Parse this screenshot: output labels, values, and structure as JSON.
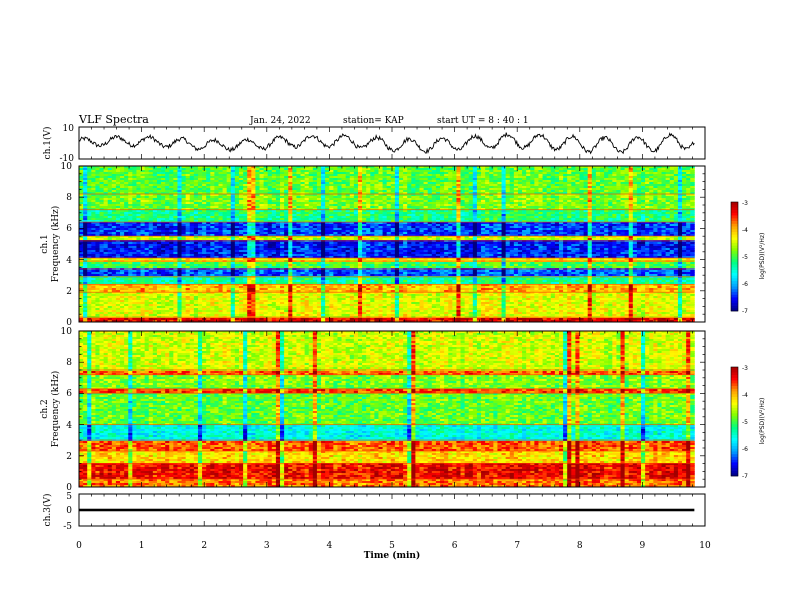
{
  "header": {
    "title": "VLF Spectra",
    "date": "Jan. 24, 2022",
    "station": "station= KAP",
    "start_ut": "start  UT =  8 : 40 : 1"
  },
  "chart_data": [
    {
      "type": "line",
      "panel": "ch1-waveform",
      "ylabel": "ch.1(V)",
      "ylim": [
        -10,
        10
      ],
      "yticks": [
        "10",
        "-10"
      ],
      "xlim": [
        0,
        10
      ],
      "x_end": 9.83,
      "note_shape": "oscillating signal, roughly -5 to +5 V, period ~0.5 min growing in amplitude",
      "color": "#000000"
    },
    {
      "type": "heatmap",
      "panel": "ch1-spectrogram",
      "ylabel": "ch.1",
      "ylabel2": "Frequency (kHz)",
      "ylim": [
        0,
        10
      ],
      "yticks": [
        "0",
        "2",
        "4",
        "6",
        "8",
        "10"
      ],
      "xlim": [
        0,
        10
      ],
      "x_end": 9.83,
      "colorbar": {
        "label": "log(PSD)(V²/Hz)",
        "range": [
          -7,
          -3
        ],
        "ticks": [
          "-3",
          "-4",
          "-5",
          "-6",
          "-7"
        ]
      },
      "bands_khz": [
        {
          "from": 0.0,
          "to": 0.3,
          "level": -3.3
        },
        {
          "from": 0.3,
          "to": 1.9,
          "level": -4.4
        },
        {
          "from": 1.9,
          "to": 2.4,
          "level": -4.0
        },
        {
          "from": 2.4,
          "to": 2.9,
          "level": -5.3
        },
        {
          "from": 2.9,
          "to": 3.4,
          "level": -6.3
        },
        {
          "from": 3.4,
          "to": 3.9,
          "level": -5.0
        },
        {
          "from": 3.9,
          "to": 4.1,
          "level": -4.3
        },
        {
          "from": 4.1,
          "to": 5.2,
          "level": -6.5
        },
        {
          "from": 5.2,
          "to": 5.5,
          "level": -4.5
        },
        {
          "from": 5.5,
          "to": 6.4,
          "level": -6.4
        },
        {
          "from": 6.4,
          "to": 7.2,
          "level": -5.2
        },
        {
          "from": 7.2,
          "to": 8.2,
          "level": -4.8
        },
        {
          "from": 8.2,
          "to": 10.0,
          "level": -4.9
        }
      ]
    },
    {
      "type": "heatmap",
      "panel": "ch2-spectrogram",
      "ylabel": "ch.2",
      "ylabel2": "Frequency (kHz)",
      "ylim": [
        0,
        10
      ],
      "yticks": [
        "0",
        "2",
        "4",
        "6",
        "8",
        "10"
      ],
      "xlim": [
        0,
        10
      ],
      "x_end": 9.83,
      "colorbar": {
        "label": "log(PSD)(V²/Hz)",
        "range": [
          -7,
          -3
        ],
        "ticks": [
          "-3",
          "-4",
          "-5",
          "-6",
          "-7"
        ]
      },
      "bands_khz": [
        {
          "from": 0.0,
          "to": 0.5,
          "level": -3.8
        },
        {
          "from": 0.5,
          "to": 1.5,
          "level": -3.4
        },
        {
          "from": 1.5,
          "to": 2.3,
          "level": -4.2
        },
        {
          "from": 2.3,
          "to": 3.0,
          "level": -3.7
        },
        {
          "from": 3.0,
          "to": 4.0,
          "level": -5.6
        },
        {
          "from": 4.0,
          "to": 6.0,
          "level": -4.9
        },
        {
          "from": 6.0,
          "to": 6.3,
          "level": -3.6
        },
        {
          "from": 6.3,
          "to": 7.2,
          "level": -4.8
        },
        {
          "from": 7.2,
          "to": 7.5,
          "level": -3.7
        },
        {
          "from": 7.5,
          "to": 10.0,
          "level": -4.5
        }
      ]
    },
    {
      "type": "line",
      "panel": "ch3-waveform",
      "ylabel": "ch.3(V)",
      "ylim": [
        -5,
        5
      ],
      "yticks": [
        "5",
        "0",
        "-5"
      ],
      "xlim": [
        0,
        10
      ],
      "x_end": 9.83,
      "level_v": 0,
      "thickness_v": 0.8,
      "color": "#000000"
    }
  ],
  "x_axis": {
    "label": "Time (min)",
    "ticks": [
      "0",
      "1",
      "2",
      "3",
      "4",
      "5",
      "6",
      "7",
      "8",
      "9",
      "10"
    ]
  },
  "colormap": [
    "#000080",
    "#0000ff",
    "#00a0ff",
    "#00ffff",
    "#00ff80",
    "#80ff00",
    "#ffff00",
    "#ffa000",
    "#ff0000",
    "#a00000"
  ]
}
